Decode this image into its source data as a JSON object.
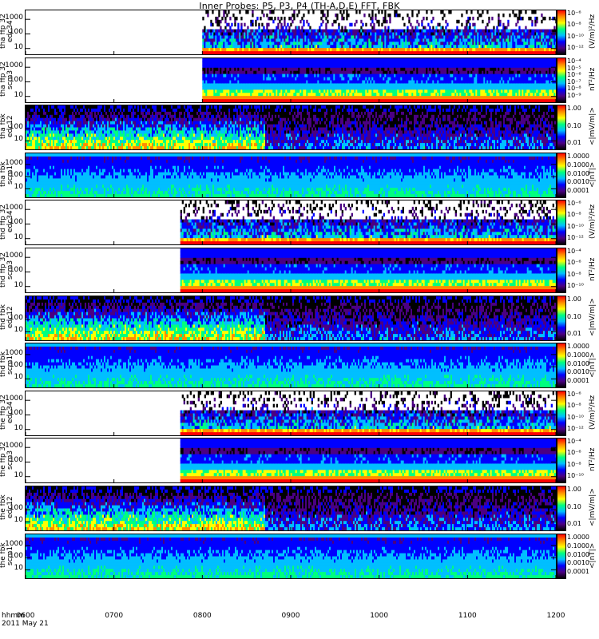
{
  "title": "Inner Probes: P5, P3, P4 (TH-A,D,E) FFT, FBK",
  "footer": {
    "line1": "hhmm",
    "line2": "2011 May 21"
  },
  "colors": {
    "background": "#ffffff",
    "axis": "#000000"
  },
  "chart_data": {
    "type": "heatmap",
    "x_axis": {
      "label": "hhmm",
      "ticks": [
        "0600",
        "0700",
        "0800",
        "0900",
        "1000",
        "1100",
        "1200"
      ],
      "range": [
        "0600",
        "1200"
      ],
      "date": "2011 May 21"
    },
    "panels": [
      {
        "id": "tha_ffp_32_edc34",
        "ylabel": [
          "tha",
          "ffp",
          "32",
          "edc34"
        ],
        "yticks": [
          "1000",
          "100",
          "10"
        ],
        "ylog": true,
        "yrange": [
          4,
          4096
        ],
        "data_start": "0800",
        "kind": "fft_e",
        "cbar_ticks": [
          "10⁻⁶",
          "10⁻⁸",
          "10⁻¹⁰",
          "10⁻¹²"
        ],
        "cbar_unit": "(V/m)²/Hz"
      },
      {
        "id": "tha_ffp_32_scm3",
        "ylabel": [
          "tha",
          "ffp",
          "32",
          "scm3"
        ],
        "yticks": [
          "1000",
          "100",
          "10"
        ],
        "ylog": true,
        "yrange": [
          4,
          4096
        ],
        "data_start": "0800",
        "kind": "fft_b",
        "cbar_ticks": [
          "10⁻⁴",
          "10⁻⁵",
          "10⁻⁶",
          "10⁻⁷",
          "10⁻⁸",
          "10⁻⁹"
        ],
        "cbar_unit": "nT²/Hz"
      },
      {
        "id": "tha_fbk_edc12",
        "ylabel": [
          "tha",
          "fbk",
          "edc12"
        ],
        "yticks": [
          "100",
          "10"
        ],
        "ylog": true,
        "yrange": [
          2,
          8192
        ],
        "data_start": "0600",
        "kind": "fbk_e",
        "cbar_ticks": [
          "1.00",
          "0.10",
          "0.01"
        ],
        "cbar_unit": "<|mV/m|>"
      },
      {
        "id": "tha_fbk_scm1",
        "ylabel": [
          "tha",
          "fbk",
          "scm1"
        ],
        "yticks": [
          "1000",
          "100",
          "10"
        ],
        "ylog": true,
        "yrange": [
          2,
          8192
        ],
        "data_start": "0600",
        "kind": "fbk_b",
        "cbar_ticks": [
          "1.0000",
          "0.1000",
          "0.0100",
          "0.0010",
          "0.0001"
        ],
        "cbar_unit": "<|nT|>"
      },
      {
        "id": "thd_ffp_32_edc34",
        "ylabel": [
          "thd",
          "ffp",
          "32",
          "edc34"
        ],
        "yticks": [
          "1000",
          "100",
          "10"
        ],
        "ylog": true,
        "yrange": [
          4,
          4096
        ],
        "data_start": "0745",
        "kind": "fft_e",
        "cbar_ticks": [
          "10⁻⁶",
          "10⁻⁸",
          "10⁻¹⁰",
          "10⁻¹²"
        ],
        "cbar_unit": "(V/m)²/Hz"
      },
      {
        "id": "thd_ffp_32_scm3",
        "ylabel": [
          "thd",
          "ffp",
          "32",
          "scm3"
        ],
        "yticks": [
          "1000",
          "100",
          "10"
        ],
        "ylog": true,
        "yrange": [
          4,
          4096
        ],
        "data_start": "0745",
        "kind": "fft_b",
        "cbar_ticks": [
          "10⁻⁴",
          "10⁻⁶",
          "10⁻⁸",
          "10⁻¹⁰"
        ],
        "cbar_unit": "nT²/Hz"
      },
      {
        "id": "thd_fbk_edc12",
        "ylabel": [
          "thd",
          "fbk",
          "edc12"
        ],
        "yticks": [
          "100",
          "10"
        ],
        "ylog": true,
        "yrange": [
          2,
          8192
        ],
        "data_start": "0600",
        "kind": "fbk_e",
        "cbar_ticks": [
          "1.00",
          "0.10",
          "0.01"
        ],
        "cbar_unit": "<|mV/m|>"
      },
      {
        "id": "thd_fbk_scm1",
        "ylabel": [
          "thd",
          "fbk",
          "scm1"
        ],
        "yticks": [
          "1000",
          "100",
          "10"
        ],
        "ylog": true,
        "yrange": [
          2,
          8192
        ],
        "data_start": "0600",
        "kind": "fbk_b",
        "cbar_ticks": [
          "1.0000",
          "0.1000",
          "0.0100",
          "0.0010",
          "0.0001"
        ],
        "cbar_unit": "<|nT|>"
      },
      {
        "id": "the_ffp_32_edc34",
        "ylabel": [
          "the",
          "ffp",
          "32",
          "edc34"
        ],
        "yticks": [
          "1000",
          "100",
          "10"
        ],
        "ylog": true,
        "yrange": [
          4,
          4096
        ],
        "data_start": "0745",
        "kind": "fft_e",
        "cbar_ticks": [
          "10⁻⁶",
          "10⁻⁸",
          "10⁻¹⁰",
          "10⁻¹²"
        ],
        "cbar_unit": "(V/m)²/Hz"
      },
      {
        "id": "the_ffp_32_scm3",
        "ylabel": [
          "the",
          "ffp",
          "32",
          "scm3"
        ],
        "yticks": [
          "1000",
          "100",
          "10"
        ],
        "ylog": true,
        "yrange": [
          4,
          4096
        ],
        "data_start": "0745",
        "kind": "fft_b",
        "cbar_ticks": [
          "10⁻⁴",
          "10⁻⁶",
          "10⁻⁸",
          "10⁻¹⁰"
        ],
        "cbar_unit": "nT²/Hz"
      },
      {
        "id": "the_fbk_edc12",
        "ylabel": [
          "the",
          "fbk",
          "edc12"
        ],
        "yticks": [
          "100",
          "10"
        ],
        "ylog": true,
        "yrange": [
          2,
          8192
        ],
        "data_start": "0600",
        "kind": "fbk_e",
        "cbar_ticks": [
          "1.00",
          "0.10",
          "0.01"
        ],
        "cbar_unit": "<|mV/m|>"
      },
      {
        "id": "the_fbk_scm1",
        "ylabel": [
          "the",
          "fbk",
          "scm1"
        ],
        "yticks": [
          "1000",
          "100",
          "10"
        ],
        "ylog": true,
        "yrange": [
          2,
          8192
        ],
        "data_start": "0600",
        "kind": "fbk_b",
        "cbar_ticks": [
          "1.0000",
          "0.1000",
          "0.0100",
          "0.0010",
          "0.0001"
        ],
        "cbar_unit": "<|nT|>"
      }
    ],
    "colormap": [
      "#000000",
      "#4b0082",
      "#0000ff",
      "#00bfff",
      "#00ff7f",
      "#ffff00",
      "#ff8c00",
      "#ff0000"
    ]
  }
}
